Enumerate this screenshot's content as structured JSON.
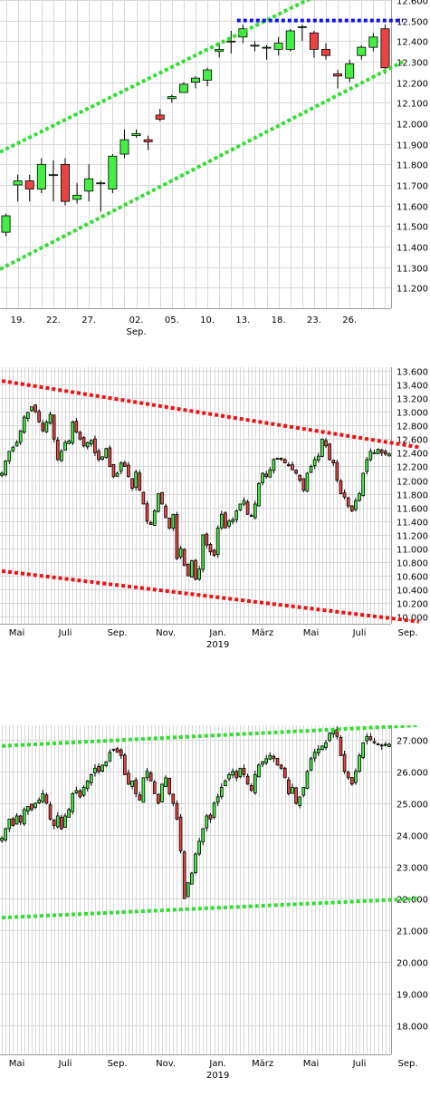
{
  "colors": {
    "up": "#44ee44",
    "down": "#e84444",
    "wick": "#000000",
    "grid": "#d8d8d8",
    "trend_green": "#33dd33",
    "trend_red": "#ee1111",
    "trend_blue": "#1111ee"
  },
  "chart_data": [
    {
      "type": "candlestick",
      "title": "",
      "ylim": [
        11.1,
        12.6
      ],
      "y_ticks": [
        "12.600",
        "12.500",
        "12.400",
        "12.300",
        "12.200",
        "12.100",
        "12.000",
        "11.900",
        "11.800",
        "11.700",
        "11.600",
        "11.500",
        "11.400",
        "11.300",
        "11.200"
      ],
      "x_ticks": [
        {
          "label": "19.",
          "sub": "",
          "i": 1
        },
        {
          "label": "22.",
          "sub": "",
          "i": 4
        },
        {
          "label": "27.",
          "sub": "",
          "i": 7
        },
        {
          "label": "02.",
          "sub": "Sep.",
          "i": 11
        },
        {
          "label": "05.",
          "sub": "",
          "i": 14
        },
        {
          "label": "10.",
          "sub": "",
          "i": 17
        },
        {
          "label": "13.",
          "sub": "",
          "i": 20
        },
        {
          "label": "18.",
          "sub": "",
          "i": 23
        },
        {
          "label": "23.",
          "sub": "",
          "i": 26
        },
        {
          "label": "26.",
          "sub": "",
          "i": 29
        }
      ],
      "candles": [
        [
          11.47,
          11.55,
          11.45,
          11.56
        ],
        [
          11.7,
          11.72,
          11.62,
          11.75
        ],
        [
          11.72,
          11.68,
          11.62,
          11.75
        ],
        [
          11.68,
          11.8,
          11.66,
          11.83
        ],
        [
          11.75,
          11.75,
          11.62,
          11.82
        ],
        [
          11.8,
          11.62,
          11.6,
          11.83
        ],
        [
          11.63,
          11.65,
          11.61,
          11.71
        ],
        [
          11.67,
          11.73,
          11.62,
          11.8
        ],
        [
          11.71,
          11.71,
          11.57,
          11.72
        ],
        [
          11.68,
          11.84,
          11.66,
          11.85
        ],
        [
          11.85,
          11.92,
          11.83,
          11.97
        ],
        [
          11.94,
          11.95,
          11.93,
          11.97
        ],
        [
          11.92,
          11.91,
          11.87,
          11.94
        ],
        [
          12.04,
          12.02,
          12.01,
          12.07
        ],
        [
          12.12,
          12.13,
          12.1,
          12.14
        ],
        [
          12.15,
          12.19,
          12.15,
          12.2
        ],
        [
          12.2,
          12.22,
          12.17,
          12.23
        ],
        [
          12.21,
          12.26,
          12.18,
          12.27
        ],
        [
          12.35,
          12.36,
          12.32,
          12.39
        ],
        [
          12.4,
          12.4,
          12.34,
          12.45
        ],
        [
          12.42,
          12.46,
          12.39,
          12.48
        ],
        [
          12.38,
          12.38,
          12.35,
          12.4
        ],
        [
          12.37,
          12.37,
          12.31,
          12.38
        ],
        [
          12.36,
          12.39,
          12.33,
          12.42
        ],
        [
          12.36,
          12.45,
          12.35,
          12.46
        ],
        [
          12.47,
          12.47,
          12.4,
          12.48
        ],
        [
          12.44,
          12.36,
          12.32,
          12.45
        ],
        [
          12.36,
          12.33,
          12.31,
          12.39
        ],
        [
          12.24,
          12.23,
          12.17,
          12.26
        ],
        [
          12.22,
          12.29,
          12.2,
          12.31
        ],
        [
          12.33,
          12.37,
          12.31,
          12.38
        ],
        [
          12.37,
          12.42,
          12.35,
          12.44
        ],
        [
          12.46,
          12.27,
          12.24,
          12.48
        ]
      ],
      "trendlines": [
        {
          "color": "trend_green",
          "from": [
            -0.5,
            11.86
          ],
          "to": [
            33.5,
            12.83
          ]
        },
        {
          "color": "trend_green",
          "from": [
            -0.5,
            11.29
          ],
          "to": [
            33.5,
            12.3
          ]
        },
        {
          "color": "trend_blue",
          "from": [
            19.5,
            12.5
          ],
          "to": [
            33.5,
            12.5
          ]
        }
      ]
    },
    {
      "type": "candlestick",
      "title": "",
      "ylim": [
        9.9,
        13.65
      ],
      "y_ticks": [
        "13.600",
        "13.400",
        "13.200",
        "13.000",
        "12.800",
        "12.600",
        "12.400",
        "12.200",
        "12.000",
        "11.800",
        "11.600",
        "11.400",
        "11.200",
        "11.000",
        "10.800",
        "10.600",
        "10.400",
        "10.200",
        "10.000"
      ],
      "x_ticks": [
        {
          "label": "Mai",
          "sub": "",
          "i": 4
        },
        {
          "label": "Juli",
          "sub": "",
          "i": 17
        },
        {
          "label": "Sep.",
          "sub": "",
          "i": 31
        },
        {
          "label": "Nov.",
          "sub": "",
          "i": 44
        },
        {
          "label": "Jan.",
          "sub": "2019",
          "i": 58
        },
        {
          "label": "März",
          "sub": "",
          "i": 70
        },
        {
          "label": "Mai",
          "sub": "",
          "i": 83
        },
        {
          "label": "Juli",
          "sub": "",
          "i": 96
        },
        {
          "label": "Sep.",
          "sub": "",
          "i": 109
        }
      ],
      "closes": [
        12.1,
        12.28,
        12.42,
        12.48,
        12.55,
        12.72,
        12.92,
        12.99,
        13.07,
        13.0,
        12.85,
        12.72,
        12.85,
        12.96,
        12.6,
        12.3,
        12.42,
        12.55,
        12.57,
        12.85,
        12.7,
        12.6,
        12.5,
        12.55,
        12.58,
        12.4,
        12.3,
        12.34,
        12.46,
        12.2,
        12.05,
        12.1,
        12.25,
        12.2,
        12.05,
        11.88,
        12.12,
        11.85,
        11.65,
        11.4,
        11.35,
        11.55,
        11.8,
        11.65,
        11.45,
        11.3,
        11.5,
        10.85,
        11.0,
        10.75,
        10.6,
        10.82,
        10.55,
        10.7,
        11.2,
        11.05,
        10.95,
        10.9,
        11.3,
        11.5,
        11.3,
        11.4,
        11.42,
        11.55,
        11.65,
        11.7,
        11.5,
        11.48,
        11.65,
        11.95,
        12.1,
        12.05,
        12.15,
        12.3,
        12.32,
        12.3,
        12.25,
        12.22,
        12.15,
        12.1,
        12.0,
        11.85,
        12.1,
        12.2,
        12.3,
        12.35,
        12.6,
        12.5,
        12.3,
        12.25,
        12.0,
        11.8,
        11.75,
        11.62,
        11.55,
        11.7,
        11.8,
        12.1,
        12.3,
        12.42,
        12.4,
        12.45,
        12.4,
        12.38,
        12.38
      ],
      "trendlines": [
        {
          "color": "trend_red",
          "from": [
            0,
            13.45
          ],
          "to": [
            112,
            12.48
          ]
        },
        {
          "color": "trend_red",
          "from": [
            0,
            10.67
          ],
          "to": [
            112,
            9.93
          ]
        }
      ]
    },
    {
      "type": "candlestick",
      "title": "",
      "ylim": [
        17.1,
        27.45
      ],
      "y_ticks": [
        "27.000",
        "26.000",
        "25.000",
        "24.000",
        "23.000",
        "22.000",
        "21.000",
        "20.000",
        "19.000",
        "18.000"
      ],
      "x_ticks": [
        {
          "label": "Mai",
          "sub": "",
          "i": 4
        },
        {
          "label": "Juli",
          "sub": "",
          "i": 17
        },
        {
          "label": "Sep.",
          "sub": "",
          "i": 31
        },
        {
          "label": "Nov.",
          "sub": "",
          "i": 44
        },
        {
          "label": "Jan.",
          "sub": "2019",
          "i": 58
        },
        {
          "label": "März",
          "sub": "",
          "i": 70
        },
        {
          "label": "Mai",
          "sub": "",
          "i": 83
        },
        {
          "label": "Juli",
          "sub": "",
          "i": 96
        },
        {
          "label": "Sep.",
          "sub": "",
          "i": 109
        }
      ],
      "closes": [
        23.9,
        24.2,
        24.5,
        24.3,
        24.6,
        24.4,
        24.8,
        24.9,
        24.8,
        25.0,
        25.1,
        25.3,
        25.0,
        24.5,
        24.3,
        24.6,
        24.2,
        24.6,
        24.8,
        25.3,
        25.4,
        25.2,
        25.5,
        25.7,
        25.9,
        26.1,
        26.0,
        26.2,
        26.3,
        26.6,
        26.7,
        26.6,
        26.5,
        25.9,
        25.6,
        25.7,
        25.3,
        25.1,
        25.8,
        26.0,
        25.7,
        25.3,
        25.0,
        25.6,
        25.8,
        25.3,
        25.0,
        24.5,
        23.5,
        22.0,
        22.5,
        22.8,
        23.4,
        23.8,
        24.2,
        24.6,
        24.5,
        25.0,
        25.2,
        25.5,
        25.7,
        25.9,
        26.0,
        25.8,
        26.1,
        25.9,
        25.6,
        25.4,
        25.9,
        26.2,
        26.3,
        26.4,
        26.5,
        26.4,
        26.2,
        26.1,
        25.8,
        25.3,
        25.5,
        25.0,
        25.2,
        25.5,
        26.0,
        26.4,
        26.6,
        26.7,
        26.8,
        26.9,
        27.2,
        27.3,
        27.1,
        26.5,
        26.0,
        25.8,
        25.6,
        26.0,
        26.5,
        26.9,
        27.1,
        27.0,
        26.9,
        26.85,
        26.8,
        26.85,
        26.85
      ],
      "trendlines": [
        {
          "color": "trend_green",
          "from": [
            0,
            26.8
          ],
          "to": [
            112,
            27.45
          ]
        },
        {
          "color": "trend_green",
          "from": [
            0,
            21.4
          ],
          "to": [
            112,
            22.0
          ]
        }
      ]
    }
  ]
}
